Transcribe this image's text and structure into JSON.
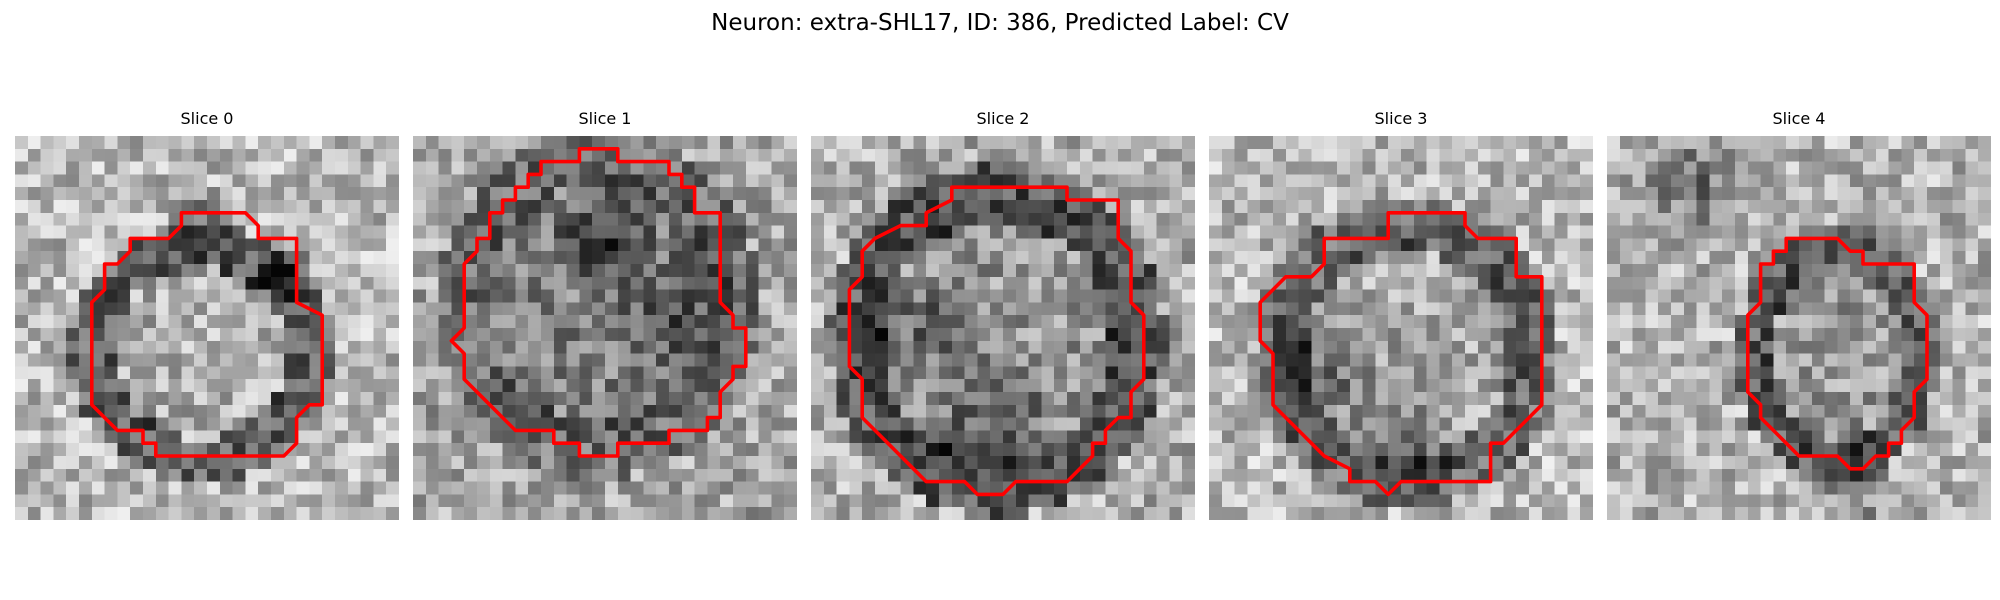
{
  "figure": {
    "title": "Neuron: extra-SHL17, ID: 386, Predicted Label: CV"
  },
  "panels": [
    {
      "title": "Slice 0"
    },
    {
      "title": "Slice 1"
    },
    {
      "title": "Slice 2"
    },
    {
      "title": "Slice 3"
    },
    {
      "title": "Slice 4"
    }
  ],
  "colors": {
    "contour": "#ff0000"
  },
  "image": {
    "grid": "30x30 grayscale micrograph slice with red segmentation contour"
  }
}
